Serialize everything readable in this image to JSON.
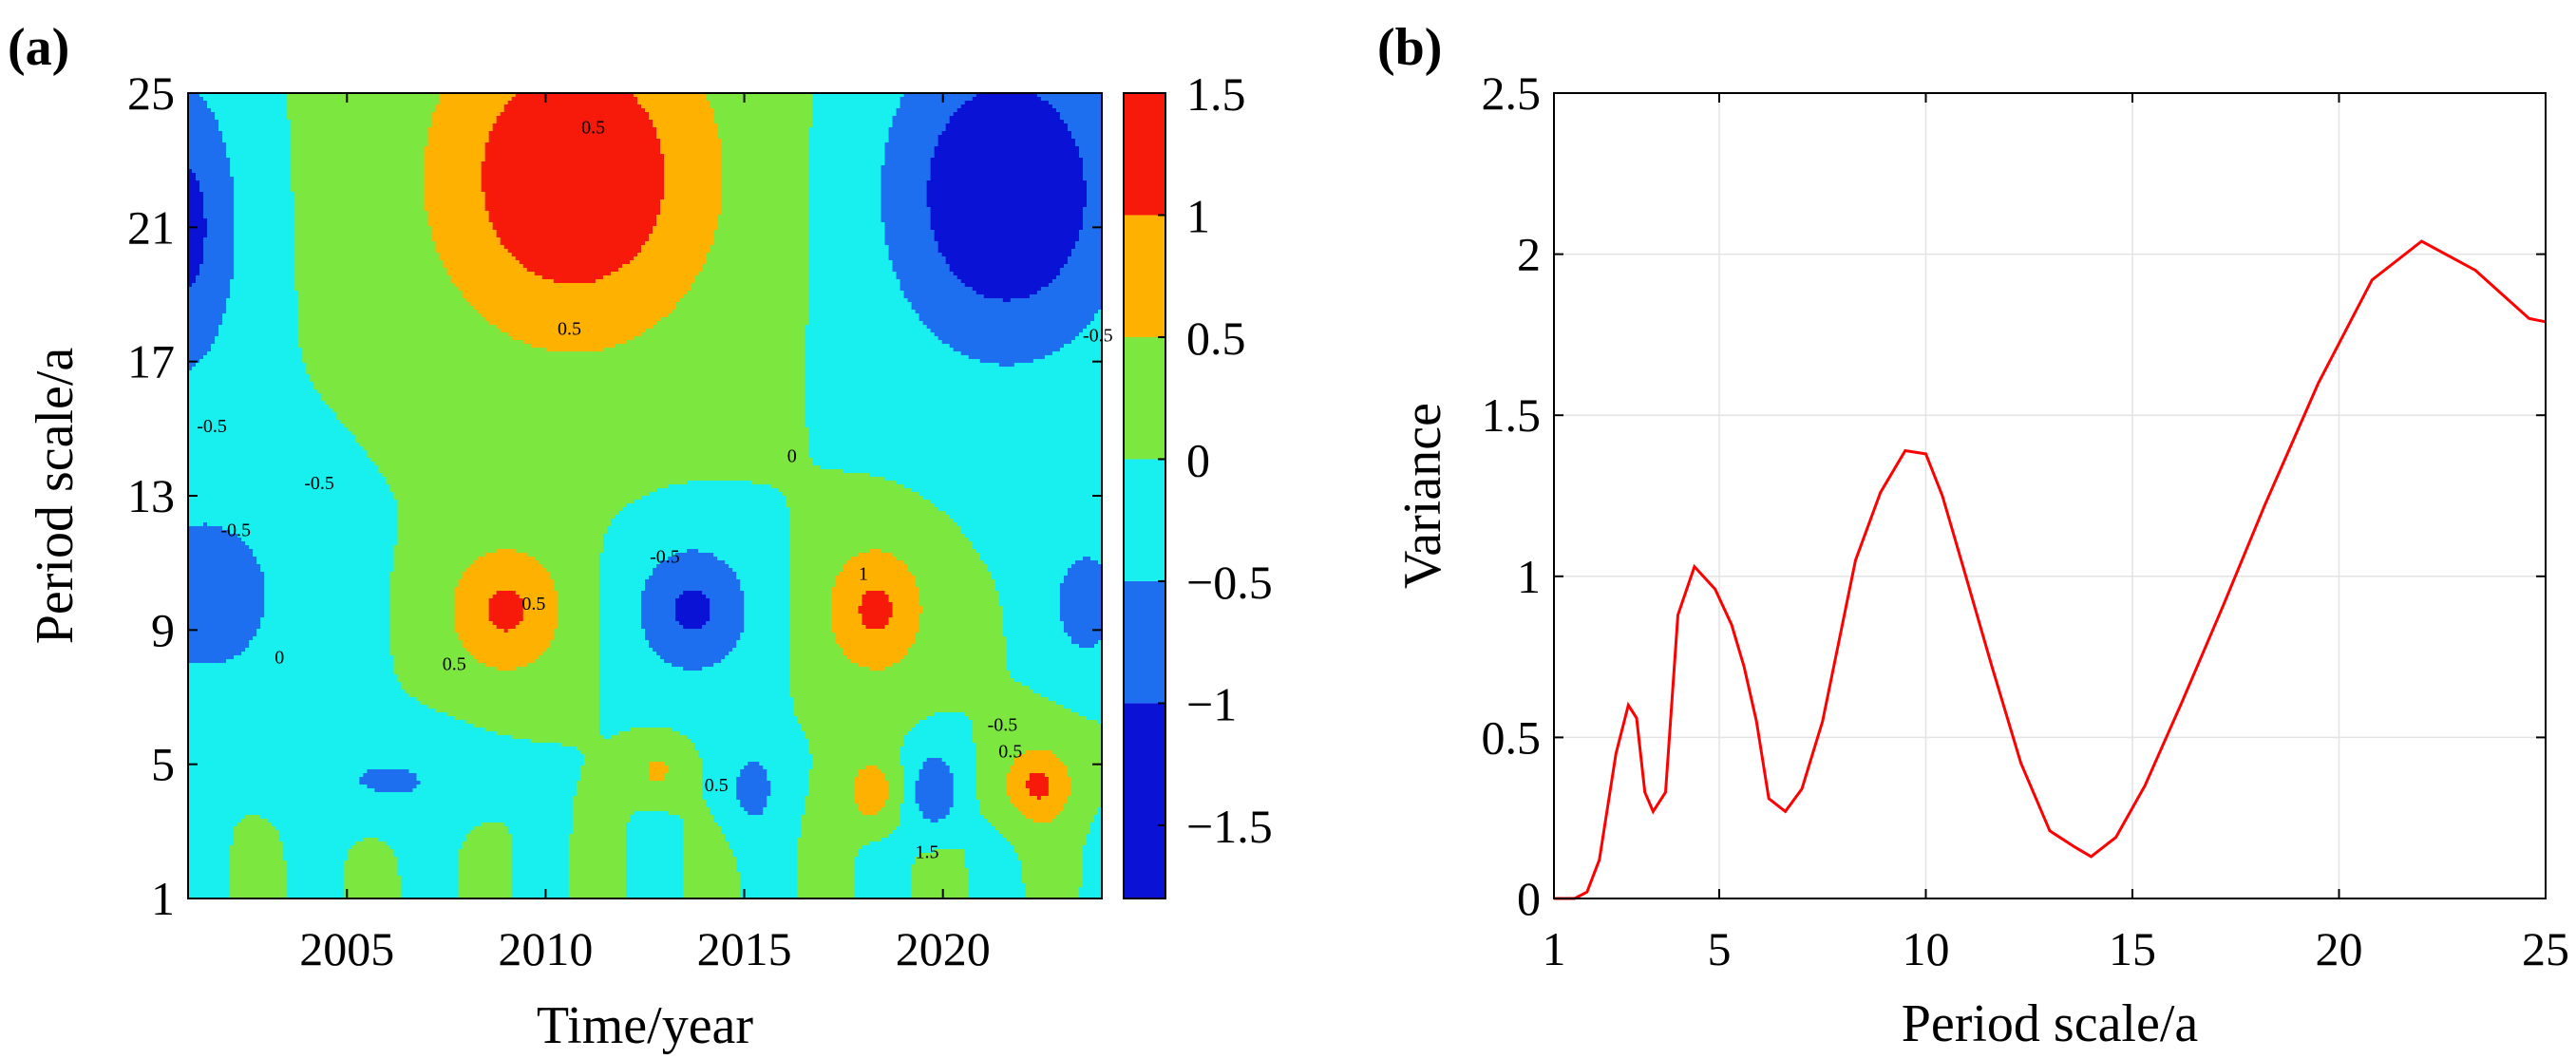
{
  "panel_labels": {
    "a": "(a)",
    "b": "(b)"
  },
  "chart_data": [
    {
      "type": "heatmap",
      "panel": "(a)",
      "xlabel": "Time/year",
      "ylabel": "Period scale/a",
      "xlim": [
        2001,
        2024
      ],
      "ylim": [
        1,
        25
      ],
      "xticks": [
        2005,
        2010,
        2015,
        2020
      ],
      "xtick_labels": [
        "2005",
        "2010",
        "2015",
        "2020"
      ],
      "yticks": [
        1,
        5,
        9,
        13,
        17,
        21,
        25
      ],
      "ytick_labels": [
        "1",
        "5",
        "9",
        "13",
        "17",
        "21",
        "25"
      ],
      "colorbar": {
        "range": [
          -1.8,
          1.5
        ],
        "ticks": [
          -1.5,
          -1,
          -0.5,
          0,
          0.5,
          1,
          1.5
        ],
        "tick_labels": [
          "−1.5",
          "−1",
          "−0.5",
          "0",
          "0.5",
          "1",
          "1.5"
        ],
        "levels": [
          -1.8,
          -1.0,
          -0.5,
          0,
          0.5,
          1.0,
          1.5
        ],
        "colors": [
          "#0a12d6",
          "#1e6ff0",
          "#17f0ef",
          "#7ce83f",
          "#ffb100",
          "#f71a0a"
        ]
      },
      "contour_labels": [
        "0.5",
        "-0.5",
        "0",
        "1",
        "1.5"
      ],
      "features": [
        {
          "t": 2010.7,
          "p": 22.5,
          "amp": 1.5,
          "st": 3.6,
          "sp": 5.0
        },
        {
          "t": 2021.6,
          "p": 22.0,
          "amp": -1.55,
          "st": 3.0,
          "sp": 4.8
        },
        {
          "t": 2000.8,
          "p": 21.0,
          "amp": -1.2,
          "st": 1.5,
          "sp": 4.5
        },
        {
          "t": 2001.5,
          "p": 10.0,
          "amp": -0.7,
          "st": 2.5,
          "sp": 3.5
        },
        {
          "t": 2009.0,
          "p": 9.6,
          "amp": 1.1,
          "st": 1.5,
          "sp": 2.0
        },
        {
          "t": 2013.7,
          "p": 9.6,
          "amp": -1.1,
          "st": 1.5,
          "sp": 2.0
        },
        {
          "t": 2018.3,
          "p": 9.6,
          "amp": 1.1,
          "st": 1.3,
          "sp": 2.0
        },
        {
          "t": 2018.2,
          "p": 4.2,
          "amp": 0.9,
          "st": 0.6,
          "sp": 1.0
        },
        {
          "t": 2019.8,
          "p": 4.2,
          "amp": -1.0,
          "st": 0.6,
          "sp": 1.2
        },
        {
          "t": 2022.4,
          "p": 4.4,
          "amp": 1.1,
          "st": 0.9,
          "sp": 1.2
        },
        {
          "t": 2023.6,
          "p": 9.8,
          "amp": -1.0,
          "st": 0.8,
          "sp": 1.6
        },
        {
          "t": 2015.2,
          "p": 4.3,
          "amp": -0.7,
          "st": 0.7,
          "sp": 1.3
        },
        {
          "t": 2012.8,
          "p": 4.8,
          "amp": 0.6,
          "st": 0.6,
          "sp": 0.8
        },
        {
          "t": 2006.0,
          "p": 4.5,
          "amp": -0.55,
          "st": 2.3,
          "sp": 1.3
        }
      ]
    },
    {
      "type": "line",
      "panel": "(b)",
      "xlabel": "Period scale/a",
      "ylabel": "Variance",
      "xlim": [
        1,
        25
      ],
      "ylim": [
        0,
        2.5
      ],
      "grid": true,
      "xticks": [
        1,
        5,
        10,
        15,
        20,
        25
      ],
      "xtick_labels": [
        "1",
        "5",
        "10",
        "15",
        "20",
        "25"
      ],
      "yticks": [
        0,
        0.5,
        1,
        1.5,
        2,
        2.5
      ],
      "ytick_labels": [
        "0",
        "0.5",
        "1",
        "1.5",
        "2",
        "2.5"
      ],
      "series": [
        {
          "name": "Variance",
          "color": "#ff0000",
          "x": [
            1.0,
            1.5,
            1.8,
            2.1,
            2.5,
            2.8,
            3.0,
            3.2,
            3.4,
            3.7,
            4.0,
            4.4,
            4.9,
            5.3,
            5.6,
            5.9,
            6.2,
            6.6,
            7.0,
            7.5,
            8.3,
            8.9,
            9.5,
            10.0,
            10.4,
            10.9,
            11.6,
            12.3,
            13.0,
            13.6,
            14.0,
            14.6,
            15.3,
            16.2,
            17.2,
            18.2,
            19.5,
            20.8,
            22.0,
            23.3,
            24.6,
            25.0
          ],
          "y": [
            0.0,
            0.0,
            0.02,
            0.12,
            0.45,
            0.6,
            0.56,
            0.33,
            0.27,
            0.33,
            0.88,
            1.03,
            0.96,
            0.85,
            0.72,
            0.55,
            0.31,
            0.27,
            0.34,
            0.55,
            1.05,
            1.26,
            1.39,
            1.38,
            1.25,
            1.03,
            0.72,
            0.42,
            0.21,
            0.16,
            0.13,
            0.19,
            0.35,
            0.61,
            0.91,
            1.22,
            1.6,
            1.92,
            2.04,
            1.95,
            1.8,
            1.79
          ]
        }
      ]
    }
  ]
}
